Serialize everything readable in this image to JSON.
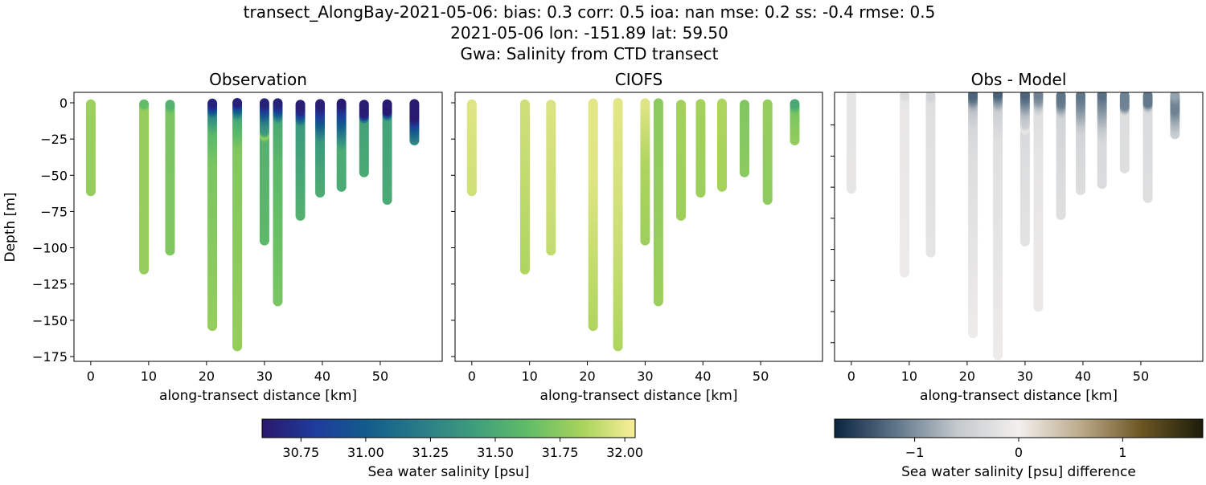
{
  "figure": {
    "title_line1": "transect_AlongBay-2021-05-06: bias: 0.3  corr: 0.5  ioa: nan  mse: 0.2  ss: -0.4  rmse: 0.5",
    "title_line2": "2021-05-06 lon: -151.89 lat: 59.50",
    "title_line3": "Gwa: Salinity from CTD transect"
  },
  "chart_data": {
    "type": "scatter",
    "panels": [
      {
        "title": "Observation",
        "field": "obs",
        "xlabel": "along-transect distance [km]",
        "ylabel": "Depth [m]",
        "show_ytick_labels": true
      },
      {
        "title": "CIOFS",
        "field": "model",
        "xlabel": "along-transect distance [km]",
        "ylabel": "",
        "show_ytick_labels": false
      },
      {
        "title": "Obs - Model",
        "field": "diff",
        "xlabel": "along-transect distance [km]",
        "ylabel": "",
        "show_ytick_labels": false
      }
    ],
    "xlim": [
      -2.9,
      60.7
    ],
    "xticks": [
      0,
      10,
      20,
      30,
      40,
      50
    ],
    "ylim": [
      -178.3,
      7.2
    ],
    "yticks": [
      0,
      -25,
      -50,
      -75,
      -100,
      -125,
      -150,
      -175
    ],
    "diff_ylim": [
      -172,
      1
    ],
    "diff_yticks": [
      -20,
      -40,
      -60,
      -80,
      -100,
      -120,
      -140,
      -160
    ],
    "stations": [
      {
        "x": 0,
        "depth": 61,
        "obs": [
          [
            0,
            31.8
          ],
          [
            61,
            31.78
          ]
        ],
        "model": [
          [
            0,
            31.97
          ],
          [
            61,
            31.93
          ]
        ]
      },
      {
        "x": 9.2,
        "depth": 115,
        "obs": [
          [
            0,
            31.55
          ],
          [
            3,
            31.78
          ],
          [
            115,
            31.78
          ]
        ],
        "model": [
          [
            0,
            31.93
          ],
          [
            115,
            31.85
          ]
        ]
      },
      {
        "x": 13.7,
        "depth": 102,
        "obs": [
          [
            0,
            31.5
          ],
          [
            5,
            31.7
          ],
          [
            102,
            31.72
          ]
        ],
        "model": [
          [
            0,
            31.96
          ],
          [
            102,
            31.9
          ]
        ]
      },
      {
        "x": 21.0,
        "depth": 154,
        "obs": [
          [
            0,
            30.65
          ],
          [
            3,
            30.8
          ],
          [
            8,
            31.3
          ],
          [
            20,
            31.6
          ],
          [
            40,
            31.7
          ],
          [
            154,
            31.78
          ]
        ],
        "model": [
          [
            0,
            31.98
          ],
          [
            50,
            31.97
          ],
          [
            154,
            31.85
          ]
        ]
      },
      {
        "x": 25.3,
        "depth": 168,
        "obs": [
          [
            0,
            30.65
          ],
          [
            4,
            31.0
          ],
          [
            10,
            31.5
          ],
          [
            30,
            31.72
          ],
          [
            168,
            31.78
          ]
        ],
        "model": [
          [
            0,
            31.98
          ],
          [
            80,
            31.93
          ],
          [
            168,
            31.85
          ]
        ]
      },
      {
        "x": 30.0,
        "depth": 95,
        "obs": [
          [
            0,
            30.65
          ],
          [
            4,
            30.8
          ],
          [
            12,
            31.25
          ],
          [
            20,
            31.45
          ],
          [
            22,
            31.8
          ],
          [
            25,
            31.55
          ],
          [
            95,
            31.6
          ]
        ],
        "model": [
          [
            0,
            31.97
          ],
          [
            40,
            31.85
          ],
          [
            95,
            31.8
          ]
        ]
      },
      {
        "x": 32.3,
        "depth": 137,
        "obs": [
          [
            0,
            30.65
          ],
          [
            4,
            30.8
          ],
          [
            12,
            31.5
          ],
          [
            40,
            31.6
          ],
          [
            137,
            31.7
          ]
        ],
        "model": [
          [
            0,
            31.75
          ],
          [
            137,
            31.8
          ]
        ]
      },
      {
        "x": 36.2,
        "depth": 78,
        "obs": [
          [
            0,
            30.62
          ],
          [
            6,
            30.7
          ],
          [
            14,
            31.4
          ],
          [
            78,
            31.55
          ]
        ],
        "model": [
          [
            0,
            31.82
          ],
          [
            78,
            31.8
          ]
        ]
      },
      {
        "x": 39.6,
        "depth": 62,
        "obs": [
          [
            0,
            30.62
          ],
          [
            6,
            30.75
          ],
          [
            25,
            31.4
          ],
          [
            62,
            31.52
          ]
        ],
        "model": [
          [
            0,
            31.82
          ],
          [
            62,
            31.8
          ]
        ]
      },
      {
        "x": 43.3,
        "depth": 58,
        "obs": [
          [
            0,
            30.62
          ],
          [
            3,
            30.7
          ],
          [
            18,
            31.15
          ],
          [
            30,
            31.5
          ],
          [
            58,
            31.5
          ]
        ],
        "model": [
          [
            0,
            31.85
          ],
          [
            58,
            31.82
          ]
        ]
      },
      {
        "x": 47.2,
        "depth": 48,
        "obs": [
          [
            0,
            30.62
          ],
          [
            8,
            30.65
          ],
          [
            12,
            31.45
          ],
          [
            48,
            31.5
          ]
        ],
        "model": [
          [
            0,
            31.72
          ],
          [
            48,
            31.75
          ]
        ]
      },
      {
        "x": 51.2,
        "depth": 67,
        "obs": [
          [
            0,
            30.62
          ],
          [
            6,
            30.62
          ],
          [
            10,
            31.45
          ],
          [
            67,
            31.5
          ]
        ],
        "model": [
          [
            0,
            31.78
          ],
          [
            67,
            31.76
          ]
        ]
      },
      {
        "x": 55.9,
        "depth": 26,
        "obs": [
          [
            0,
            30.62
          ],
          [
            10,
            30.62
          ],
          [
            18,
            31.0
          ],
          [
            26,
            31.3
          ]
        ],
        "model": [
          [
            0,
            31.45
          ],
          [
            5,
            31.7
          ],
          [
            26,
            31.78
          ]
        ]
      }
    ],
    "colorbars": [
      {
        "label": "Sea water salinity [psu]",
        "range": [
          30.6,
          32.04
        ],
        "ticks": [
          30.75,
          31.0,
          31.25,
          31.5,
          31.75,
          32.0
        ],
        "tick_labels": [
          "30.75",
          "31.00",
          "31.25",
          "31.50",
          "31.75",
          "32.00"
        ],
        "colormap": [
          "#2a186c",
          "#1e3c9c",
          "#125d8b",
          "#2a7c87",
          "#3e9e7c",
          "#62bd67",
          "#a8d35a",
          "#fbee9a"
        ]
      },
      {
        "label": "Sea water salinity [psu] difference",
        "range": [
          -1.77,
          1.77
        ],
        "ticks": [
          -1,
          0,
          1
        ],
        "tick_labels": [
          "−1",
          "0",
          "1"
        ],
        "colormap": [
          "#0a2340",
          "#5f7689",
          "#c4c9cd",
          "#f3f0ee",
          "#bcab8c",
          "#6c5622",
          "#1c1c0a"
        ]
      }
    ]
  }
}
